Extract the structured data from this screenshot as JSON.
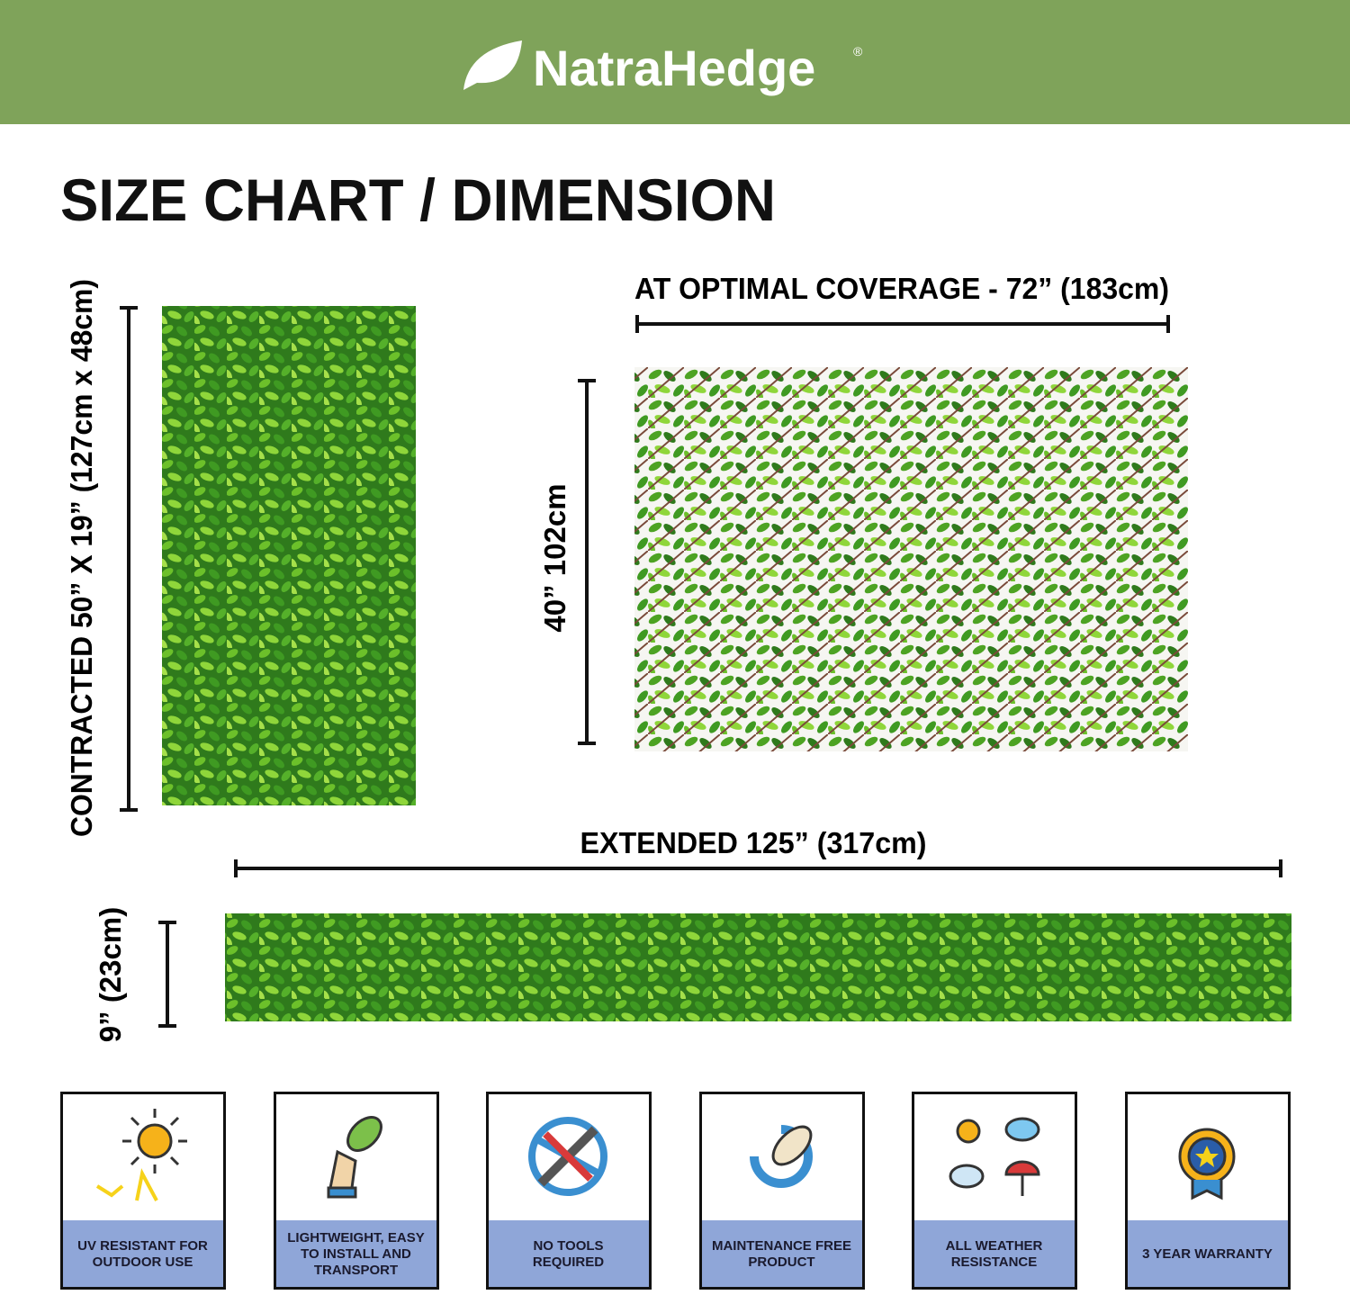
{
  "header": {
    "brand": "NatraHedge",
    "registered": "®"
  },
  "title": "SIZE CHART / DIMENSION",
  "dimensions": {
    "contracted": "CONTRACTED 50” X 19” (127cm x 48cm)",
    "optimal_width": "AT OPTIMAL COVERAGE - 72” (183cm)",
    "optimal_height": "40” 102cm",
    "extended_width": "EXTENDED 125” (317cm)",
    "extended_height": "9” (23cm)"
  },
  "features": [
    {
      "label": "UV RESISTANT FOR OUTDOOR USE"
    },
    {
      "label": "LIGHTWEIGHT, EASY TO INSTALL AND TRANSPORT"
    },
    {
      "label": "NO TOOLS REQUIRED"
    },
    {
      "label": "MAINTENANCE FREE PRODUCT"
    },
    {
      "label": "ALL WEATHER RESISTANCE"
    },
    {
      "label": "3 YEAR WARRANTY"
    }
  ]
}
